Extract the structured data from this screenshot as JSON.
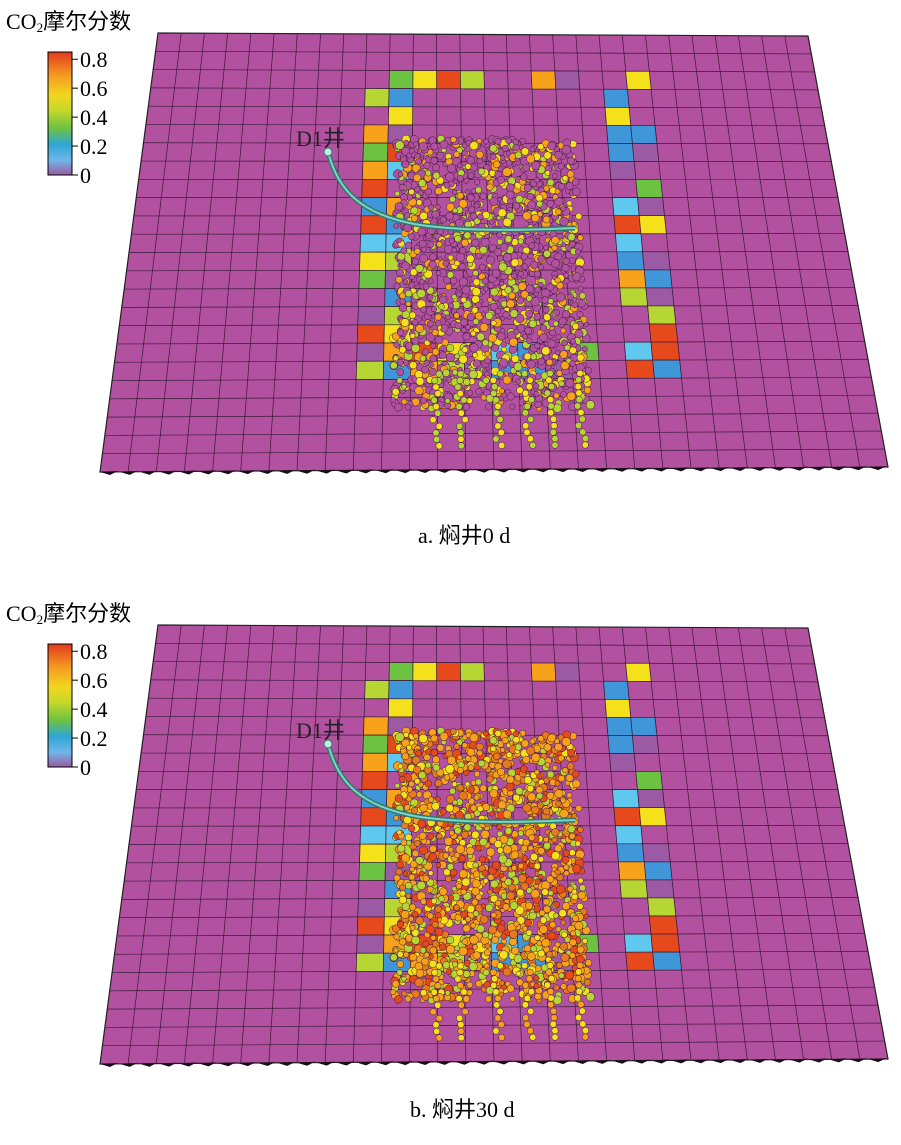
{
  "legend": {
    "title_main": "CO",
    "title_sub": "2",
    "title_tail": "摩尔分数",
    "ticks": [
      "0.8",
      "0.6",
      "0.4",
      "0.2",
      "0"
    ],
    "tick_values": [
      0.8,
      0.6,
      0.4,
      0.2,
      0
    ],
    "range": [
      0,
      0.85
    ]
  },
  "colors": {
    "background_cell": "#b2519f",
    "scale": [
      "#8e4a8f",
      "#5ec8ef",
      "#3f96d8",
      "#b6d634",
      "#f4e11b",
      "#f7a21a",
      "#e64a1c"
    ]
  },
  "well_label": "D1井",
  "panels": [
    {
      "id": "a",
      "caption": "a. 焖井0 d",
      "dominant_core_value": 0.0
    },
    {
      "id": "b",
      "caption": "b. 焖井30 d",
      "dominant_core_value": 0.65
    }
  ]
}
